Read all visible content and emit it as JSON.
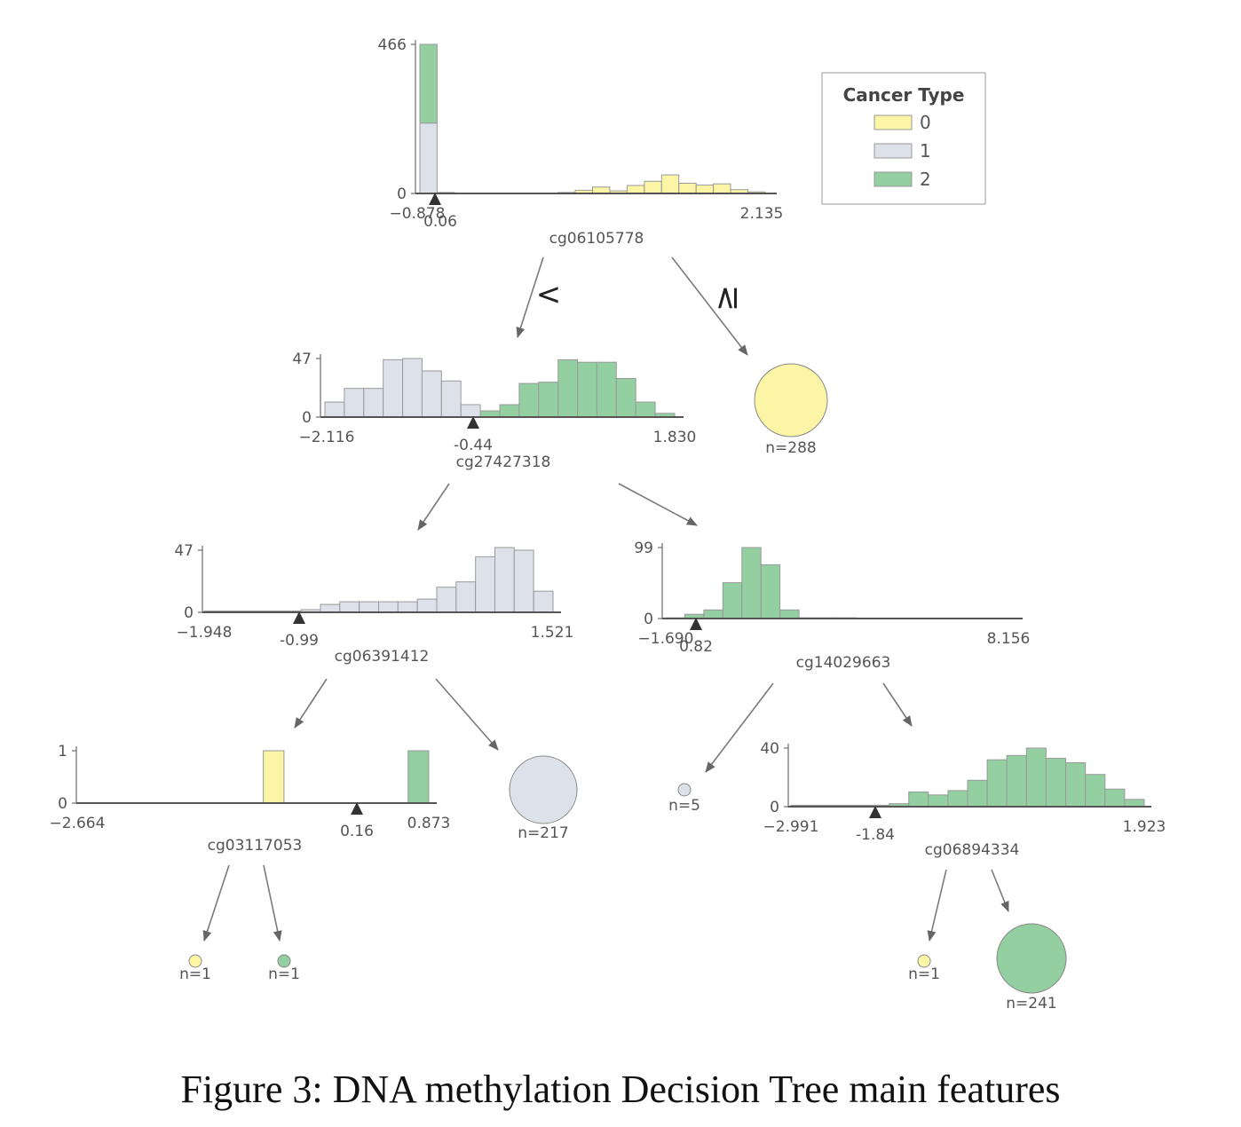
{
  "colors": {
    "0": "#fbf5a5",
    "1": "#dde2ea",
    "2": "#93cfa1"
  },
  "legend": {
    "title": "Cancer Type",
    "entries": [
      {
        "label": "0",
        "color": "#fbf5a5"
      },
      {
        "label": "1",
        "color": "#dde2ea"
      },
      {
        "label": "2",
        "color": "#93cfa1"
      }
    ]
  },
  "branch_symbols": {
    "left": "<",
    "right": "≥"
  },
  "caption": "Figure 3: DNA methylation Decision Tree main features",
  "nodes": [
    {
      "id": "root",
      "feature": "cg06105778",
      "y_max": 466,
      "y_min": 0,
      "x_min": "−0.878",
      "x_max": "2.135",
      "threshold": "0.06",
      "bins": [
        [
          0,
          220,
          246
        ],
        [
          0,
          3,
          0
        ],
        [
          0,
          1,
          0
        ],
        [
          0,
          1,
          0
        ],
        [
          0,
          1,
          0
        ],
        [
          0,
          1,
          0
        ],
        [
          0,
          1,
          0
        ],
        [
          0,
          1,
          0
        ],
        [
          3,
          0,
          0
        ],
        [
          10,
          0,
          0
        ],
        [
          20,
          0,
          0
        ],
        [
          8,
          0,
          0
        ],
        [
          25,
          0,
          0
        ],
        [
          38,
          0,
          0
        ],
        [
          58,
          0,
          0
        ],
        [
          32,
          0,
          0
        ],
        [
          26,
          0,
          0
        ],
        [
          30,
          0,
          0
        ],
        [
          12,
          0,
          0
        ],
        [
          5,
          0,
          0
        ]
      ]
    },
    {
      "id": "n2",
      "feature": "cg27427318",
      "y_max": 47,
      "y_min": 0,
      "x_min": "−2.116",
      "x_max": "1.830",
      "threshold": "-0.44",
      "bins": [
        [
          0,
          12,
          0
        ],
        [
          0,
          23,
          0
        ],
        [
          0,
          23,
          0
        ],
        [
          0,
          46,
          0
        ],
        [
          0,
          47,
          0
        ],
        [
          0,
          37,
          0
        ],
        [
          0,
          29,
          0
        ],
        [
          0,
          10,
          0
        ],
        [
          0,
          0,
          5
        ],
        [
          0,
          0,
          10
        ],
        [
          0,
          0,
          27
        ],
        [
          0,
          0,
          28
        ],
        [
          0,
          0,
          46
        ],
        [
          0,
          0,
          44
        ],
        [
          0,
          0,
          44
        ],
        [
          0,
          0,
          31
        ],
        [
          0,
          0,
          12
        ],
        [
          0,
          0,
          3
        ]
      ]
    },
    {
      "id": "n3",
      "feature": "cg06391412",
      "y_max": 47,
      "y_min": 0,
      "x_min": "−1.948",
      "x_max": "1.521",
      "threshold": "-0.99",
      "bins": [
        [
          0,
          1,
          0
        ],
        [
          0,
          1,
          0
        ],
        [
          0,
          1,
          0
        ],
        [
          0,
          1,
          0
        ],
        [
          0,
          1,
          0
        ],
        [
          0,
          2,
          0
        ],
        [
          0,
          6,
          0
        ],
        [
          0,
          8,
          0
        ],
        [
          0,
          8,
          0
        ],
        [
          0,
          8,
          0
        ],
        [
          0,
          8,
          0
        ],
        [
          0,
          10,
          0
        ],
        [
          0,
          19,
          0
        ],
        [
          0,
          23,
          0
        ],
        [
          0,
          42,
          0
        ],
        [
          0,
          49,
          0
        ],
        [
          0,
          47,
          0
        ],
        [
          0,
          16,
          0
        ]
      ]
    },
    {
      "id": "n4",
      "feature": "cg14029663",
      "y_max": 99,
      "y_min": 0,
      "x_min": "−1.690",
      "x_max": "8.156",
      "threshold": "0.82",
      "bins": [
        [
          0,
          1,
          0
        ],
        [
          0,
          0,
          6
        ],
        [
          0,
          0,
          12
        ],
        [
          0,
          0,
          50
        ],
        [
          0,
          0,
          99
        ],
        [
          0,
          0,
          75
        ],
        [
          0,
          0,
          12
        ],
        [
          0,
          0,
          1
        ],
        [
          0,
          0,
          1
        ],
        [
          0,
          0,
          1
        ],
        [
          0,
          0,
          0
        ],
        [
          0,
          0,
          0
        ],
        [
          0,
          0,
          0
        ],
        [
          0,
          0,
          0
        ],
        [
          0,
          0,
          0
        ],
        [
          0,
          0,
          0
        ],
        [
          0,
          0,
          0
        ],
        [
          0,
          0,
          0
        ]
      ]
    },
    {
      "id": "n5",
      "feature": "cg03117053",
      "y_max": 1,
      "y_min": 0,
      "x_min": "−2.664",
      "x_max": "0.873",
      "threshold": "0.16",
      "bins": [
        [
          0,
          0,
          0
        ],
        [
          0,
          0,
          0
        ],
        [
          0,
          0,
          0
        ],
        [
          0,
          0,
          0
        ],
        [
          0,
          0,
          0
        ],
        [
          0,
          0,
          0
        ],
        [
          0,
          0,
          0
        ],
        [
          0,
          0,
          0
        ],
        [
          0,
          0,
          0
        ],
        [
          1,
          0,
          0
        ],
        [
          0,
          0,
          0
        ],
        [
          0,
          0,
          0
        ],
        [
          0,
          0,
          0
        ],
        [
          0,
          0,
          0
        ],
        [
          0,
          0,
          0
        ],
        [
          0,
          0,
          0
        ],
        [
          0,
          0,
          1
        ]
      ]
    },
    {
      "id": "n6",
      "feature": "cg06894334",
      "y_max": 40,
      "y_min": 0,
      "x_min": "−2.991",
      "x_max": "1.923",
      "threshold": "-1.84",
      "bins": [
        [
          0,
          0,
          1
        ],
        [
          0,
          0,
          1
        ],
        [
          0,
          0,
          1
        ],
        [
          0,
          0,
          1
        ],
        [
          0,
          0,
          1
        ],
        [
          0,
          0,
          2
        ],
        [
          0,
          0,
          10
        ],
        [
          0,
          0,
          8
        ],
        [
          0,
          0,
          11
        ],
        [
          0,
          0,
          18
        ],
        [
          0,
          0,
          32
        ],
        [
          0,
          0,
          35
        ],
        [
          0,
          0,
          40
        ],
        [
          0,
          0,
          33
        ],
        [
          0,
          0,
          30
        ],
        [
          0,
          0,
          22
        ],
        [
          0,
          0,
          12
        ],
        [
          0,
          0,
          5
        ]
      ]
    }
  ],
  "leaves": [
    {
      "id": "leaf-root-right",
      "label": "n=288",
      "class": "0"
    },
    {
      "id": "leaf-n3-right",
      "label": "n=217",
      "class": "1"
    },
    {
      "id": "leaf-n4-left",
      "label": "n=5",
      "class": "1"
    },
    {
      "id": "leaf-n5-left",
      "label": "n=1",
      "class": "0"
    },
    {
      "id": "leaf-n5-right",
      "label": "n=1",
      "class": "2"
    },
    {
      "id": "leaf-n6-left",
      "label": "n=1",
      "class": "0"
    },
    {
      "id": "leaf-n6-right",
      "label": "n=241",
      "class": "2"
    }
  ]
}
